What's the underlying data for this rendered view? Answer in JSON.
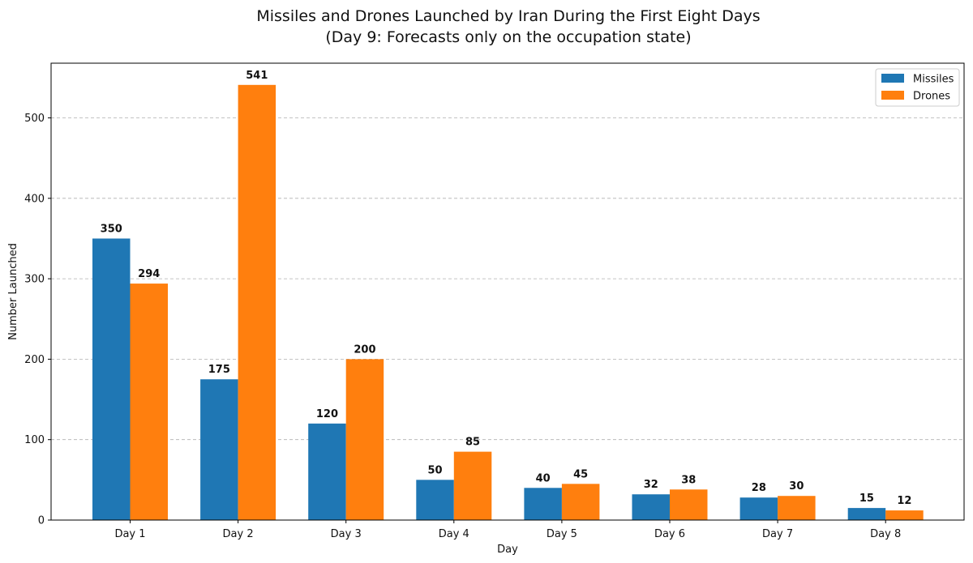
{
  "chart_data": {
    "type": "bar",
    "title": "Missiles and Drones Launched by Iran During the First Eight Days",
    "subtitle": "(Day 9: Forecasts only on the occupation state)",
    "xlabel": "Day",
    "ylabel": "Number Launched",
    "categories": [
      "Day 1",
      "Day 2",
      "Day 3",
      "Day 4",
      "Day 5",
      "Day 6",
      "Day 7",
      "Day 8"
    ],
    "series": [
      {
        "name": "Missiles",
        "color": "#1f77b4",
        "values": [
          350,
          175,
          120,
          50,
          40,
          32,
          28,
          15
        ]
      },
      {
        "name": "Drones",
        "color": "#ff7f0e",
        "values": [
          294,
          541,
          200,
          85,
          45,
          38,
          30,
          12
        ]
      }
    ],
    "ylim": [
      0,
      568
    ],
    "yticks": [
      0,
      100,
      200,
      300,
      400,
      500
    ],
    "grid": "y-dashed",
    "legend_position": "top-right",
    "data_labels": true
  }
}
